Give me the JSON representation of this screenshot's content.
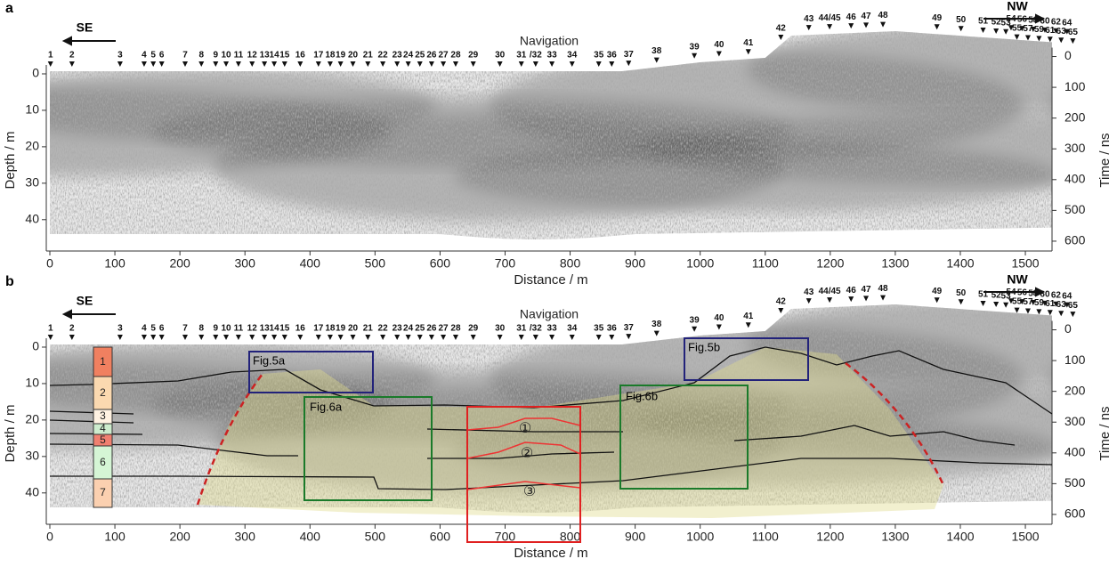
{
  "panel_labels": [
    "a",
    "b"
  ],
  "direction": {
    "left": "SE",
    "right": "NW"
  },
  "navigation": {
    "title": "Navigation",
    "markers": [
      {
        "label": "1",
        "x": 1,
        "red": true
      },
      {
        "label": "2",
        "x": 34
      },
      {
        "label": "3",
        "x": 108
      },
      {
        "label": "4",
        "x": 145
      },
      {
        "label": "5",
        "x": 159
      },
      {
        "label": "6",
        "x": 172
      },
      {
        "label": "7",
        "x": 208
      },
      {
        "label": "8",
        "x": 233
      },
      {
        "label": "9",
        "x": 255
      },
      {
        "label": "10",
        "x": 271
      },
      {
        "label": "11",
        "x": 290,
        "red": true
      },
      {
        "label": "12",
        "x": 311
      },
      {
        "label": "13",
        "x": 330
      },
      {
        "label": "14",
        "x": 345
      },
      {
        "label": "15",
        "x": 361
      },
      {
        "label": "16",
        "x": 385
      },
      {
        "label": "17",
        "x": 413
      },
      {
        "label": "18",
        "x": 431
      },
      {
        "label": "19",
        "x": 447
      },
      {
        "label": "20",
        "x": 466
      },
      {
        "label": "21",
        "x": 489,
        "red": true
      },
      {
        "label": "22",
        "x": 512
      },
      {
        "label": "23",
        "x": 534
      },
      {
        "label": "24",
        "x": 551
      },
      {
        "label": "25",
        "x": 569
      },
      {
        "label": "26",
        "x": 587
      },
      {
        "label": "27",
        "x": 605
      },
      {
        "label": "28",
        "x": 624
      },
      {
        "label": "29",
        "x": 651
      },
      {
        "label": "30",
        "x": 692
      },
      {
        "label": "31",
        "x": 725,
        "red": true
      },
      {
        "label": "/32",
        "x": 747
      },
      {
        "label": "33",
        "x": 772
      },
      {
        "label": "34",
        "x": 803
      },
      {
        "label": "35",
        "x": 844
      },
      {
        "label": "36",
        "x": 864
      },
      {
        "label": "37",
        "x": 890
      },
      {
        "label": "38",
        "x": 933
      },
      {
        "label": "39",
        "x": 991
      },
      {
        "label": "40",
        "x": 1029
      },
      {
        "label": "41",
        "x": 1074,
        "red": true
      },
      {
        "label": "42",
        "x": 1124
      },
      {
        "label": "43",
        "x": 1167
      },
      {
        "label": "44/45",
        "x": 1199
      },
      {
        "label": "46",
        "x": 1232
      },
      {
        "label": "47",
        "x": 1255
      },
      {
        "label": "48",
        "x": 1281
      },
      {
        "label": "49",
        "x": 1364
      },
      {
        "label": "50",
        "x": 1401
      },
      {
        "label": "51",
        "x": 1435,
        "red": true
      },
      {
        "label": "52",
        "x": 1455
      },
      {
        "label": "53",
        "x": 1470
      },
      {
        "label": "54",
        "x": 1478
      },
      {
        "label": "55",
        "x": 1487
      },
      {
        "label": "56",
        "x": 1495
      },
      {
        "label": "57",
        "x": 1504
      },
      {
        "label": "58",
        "x": 1512
      },
      {
        "label": "59",
        "x": 1521
      },
      {
        "label": "60",
        "x": 1530
      },
      {
        "label": "61",
        "x": 1538,
        "red": true
      },
      {
        "label": "62",
        "x": 1547
      },
      {
        "label": "63",
        "x": 1555
      },
      {
        "label": "64",
        "x": 1564
      },
      {
        "label": "65",
        "x": 1573
      }
    ]
  },
  "x_axis": {
    "label": "Distance / m",
    "lim": [
      0,
      1541
    ],
    "ticks": [
      0,
      100,
      200,
      300,
      400,
      500,
      600,
      700,
      800,
      900,
      1000,
      1100,
      1200,
      1300,
      1400,
      1500
    ]
  },
  "depth_axis": {
    "label": "Depth / m",
    "lim": [
      -6.1,
      48.6
    ],
    "ticks": [
      0,
      10,
      20,
      30,
      40
    ]
  },
  "time_axis": {
    "label": "Time / ns",
    "lim": [
      -16,
      632
    ],
    "ticks": [
      0,
      100,
      200,
      300,
      400,
      500,
      600
    ]
  },
  "annotations": {
    "boxes": [
      "Fig.5a",
      "Fig.5b",
      "Fig.6a",
      "Fig.6b"
    ],
    "layers": [
      "1",
      "2",
      "3",
      "4",
      "5",
      "6",
      "7"
    ],
    "units": [
      "①",
      "②",
      "③"
    ]
  }
}
